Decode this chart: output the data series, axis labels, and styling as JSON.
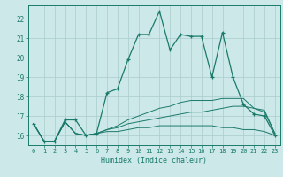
{
  "title": "",
  "xlabel": "Humidex (Indice chaleur)",
  "background_color": "#cce8e8",
  "grid_color": "#aacccc",
  "line_color": "#1a7a6a",
  "xlim": [
    -0.5,
    23.5
  ],
  "ylim": [
    15.5,
    22.7
  ],
  "xticks": [
    0,
    1,
    2,
    3,
    4,
    5,
    6,
    7,
    8,
    9,
    10,
    11,
    12,
    13,
    14,
    15,
    16,
    17,
    18,
    19,
    20,
    21,
    22,
    23
  ],
  "yticks": [
    16,
    17,
    18,
    19,
    20,
    21,
    22
  ],
  "main_x": [
    0,
    1,
    2,
    3,
    4,
    5,
    6,
    7,
    8,
    9,
    10,
    11,
    12,
    13,
    14,
    15,
    16,
    17,
    18,
    19,
    20,
    21,
    22,
    23
  ],
  "main_y": [
    16.6,
    15.7,
    15.7,
    16.8,
    16.8,
    16.0,
    16.1,
    18.2,
    18.4,
    19.9,
    21.2,
    21.2,
    22.4,
    20.4,
    21.2,
    21.1,
    21.1,
    19.0,
    21.3,
    19.0,
    17.6,
    17.1,
    17.0,
    16.0
  ],
  "line2_x": [
    0,
    1,
    2,
    3,
    4,
    5,
    6,
    7,
    8,
    9,
    10,
    11,
    12,
    13,
    14,
    15,
    16,
    17,
    18,
    19,
    20,
    21,
    22,
    23
  ],
  "line2_y": [
    16.6,
    15.7,
    15.7,
    16.7,
    16.1,
    16.0,
    16.1,
    16.2,
    16.2,
    16.3,
    16.4,
    16.4,
    16.5,
    16.5,
    16.5,
    16.5,
    16.5,
    16.5,
    16.4,
    16.4,
    16.3,
    16.3,
    16.2,
    16.0
  ],
  "line3_x": [
    0,
    1,
    2,
    3,
    4,
    5,
    6,
    7,
    8,
    9,
    10,
    11,
    12,
    13,
    14,
    15,
    16,
    17,
    18,
    19,
    20,
    21,
    22,
    23
  ],
  "line3_y": [
    16.6,
    15.7,
    15.7,
    16.7,
    16.1,
    16.0,
    16.1,
    16.3,
    16.4,
    16.6,
    16.7,
    16.8,
    16.9,
    17.0,
    17.1,
    17.2,
    17.2,
    17.3,
    17.4,
    17.5,
    17.5,
    17.4,
    17.3,
    16.1
  ],
  "line4_x": [
    0,
    1,
    2,
    3,
    4,
    5,
    6,
    7,
    8,
    9,
    10,
    11,
    12,
    13,
    14,
    15,
    16,
    17,
    18,
    19,
    20,
    21,
    22,
    23
  ],
  "line4_y": [
    16.6,
    15.7,
    15.7,
    16.7,
    16.1,
    16.0,
    16.1,
    16.3,
    16.5,
    16.8,
    17.0,
    17.2,
    17.4,
    17.5,
    17.7,
    17.8,
    17.8,
    17.8,
    17.9,
    17.9,
    17.9,
    17.4,
    17.2,
    16.1
  ]
}
